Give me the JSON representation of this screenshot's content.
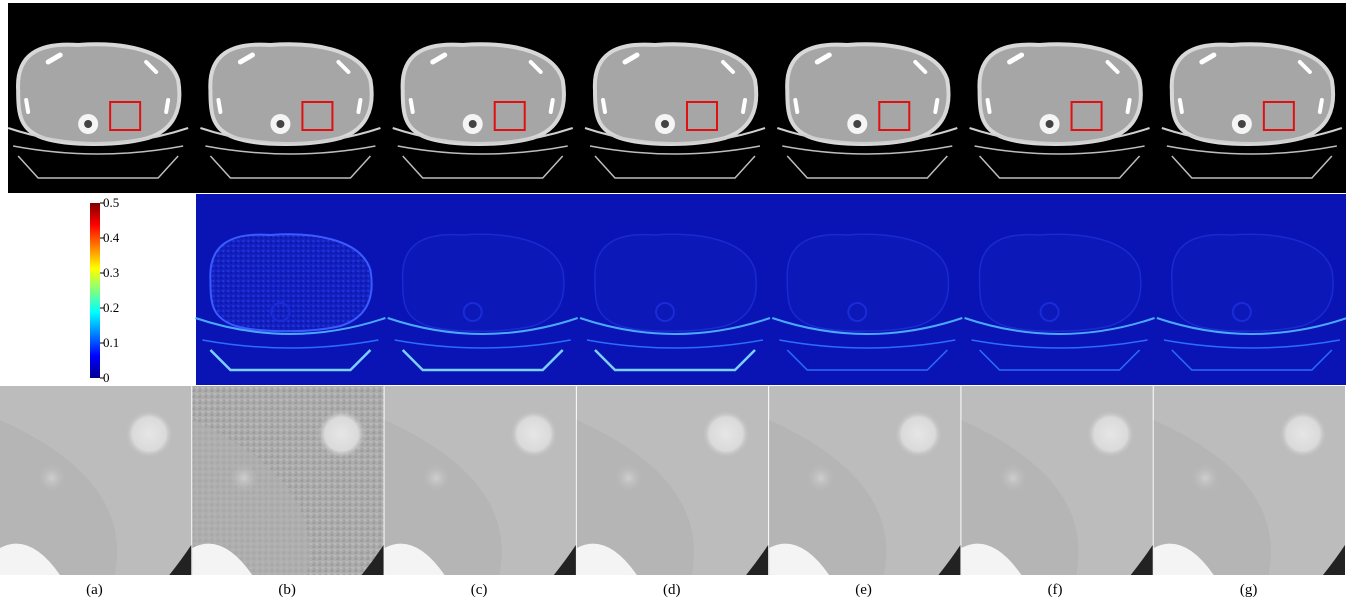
{
  "figure": {
    "panel_labels": [
      "(a)",
      "(b)",
      "(c)",
      "(d)",
      "(e)",
      "(f)",
      "(g)"
    ],
    "colorbar": {
      "ticks": [
        "0.5",
        "0.4",
        "0.3",
        "0.2",
        "0.1",
        "0"
      ],
      "range": [
        0,
        0.5
      ],
      "colormap": "jet"
    },
    "rows": [
      "ct-reconstruction",
      "error-map",
      "roi-zoom"
    ],
    "roi_box_color": "#e01010",
    "error_background_color": "#0a14b4"
  }
}
